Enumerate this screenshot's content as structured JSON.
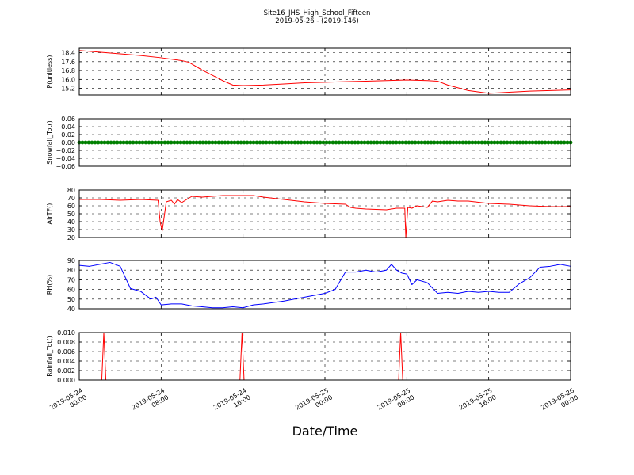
{
  "figure": {
    "title": "Site16_JHS_High_School_Fifteen",
    "subtitle": "2019-05-26 - (2019-146)",
    "xlabel": "Date/Time"
  },
  "chart_data": [
    {
      "type": "line",
      "ylabel": "P(unitless)",
      "ylim": [
        14.6,
        18.8
      ],
      "yticks": [
        "18.4",
        "17.6",
        "16.8",
        "16.0",
        "15.2"
      ],
      "ytick_values": [
        18.4,
        17.6,
        16.8,
        16.0,
        15.2
      ],
      "xlim": [
        0,
        48
      ],
      "grid": true,
      "series": [
        {
          "color": "#ff0000",
          "x": [
            0,
            2,
            4,
            6,
            8,
            10,
            10.7,
            12,
            14,
            15,
            16,
            18,
            20,
            22,
            24,
            26,
            28,
            30,
            32,
            34,
            35,
            36,
            38,
            40,
            42,
            44,
            46,
            48
          ],
          "y": [
            18.6,
            18.45,
            18.3,
            18.15,
            17.95,
            17.7,
            17.55,
            16.85,
            15.9,
            15.5,
            15.45,
            15.5,
            15.6,
            15.7,
            15.75,
            15.8,
            15.85,
            15.9,
            15.95,
            15.9,
            15.85,
            15.5,
            15.0,
            14.75,
            14.85,
            14.95,
            15.0,
            15.05
          ]
        }
      ]
    },
    {
      "type": "scatter",
      "ylabel": "Snowfall_Tot()",
      "ylim": [
        -0.06,
        0.06
      ],
      "yticks": [
        "0.06",
        "0.04",
        "0.02",
        "0.00",
        "−0.02",
        "−0.04",
        "−0.06"
      ],
      "ytick_values": [
        0.06,
        0.04,
        0.02,
        0.0,
        -0.02,
        -0.04,
        -0.06
      ],
      "xlim": [
        0,
        48
      ],
      "grid": true,
      "series": [
        {
          "color": "#008000",
          "x": [
            0,
            48
          ],
          "y": [
            0,
            0
          ],
          "marker": "dense-dots"
        }
      ]
    },
    {
      "type": "line",
      "ylabel": "AirTF()",
      "ylim": [
        20,
        80
      ],
      "yticks": [
        "80",
        "70",
        "60",
        "50",
        "40",
        "30",
        "20"
      ],
      "ytick_values": [
        80,
        70,
        60,
        50,
        40,
        30,
        20
      ],
      "xlim": [
        0,
        48
      ],
      "grid": true,
      "series": [
        {
          "color": "#ff0000",
          "x": [
            0,
            2,
            4,
            6,
            7.7,
            7.9,
            8.1,
            8.5,
            9,
            9.3,
            9.6,
            10,
            10.5,
            11,
            12,
            14,
            16,
            17,
            18,
            20,
            22,
            24,
            26,
            26.5,
            27,
            28,
            30,
            31,
            31.8,
            31.9,
            32.1,
            32.5,
            33,
            34,
            34.5,
            35,
            36,
            37,
            38,
            40,
            42,
            44,
            46,
            48
          ],
          "y": [
            68,
            68,
            67,
            68,
            67,
            40,
            28,
            65,
            67,
            62,
            68,
            64,
            68,
            72,
            71,
            73,
            73,
            73,
            71,
            68,
            65,
            63,
            62,
            58,
            57,
            56,
            55,
            57,
            57,
            20,
            58,
            57,
            60,
            58,
            66,
            65,
            67,
            66,
            66,
            63,
            62,
            60,
            59,
            59
          ]
        }
      ]
    },
    {
      "type": "line",
      "ylabel": "RH(%)",
      "ylim": [
        40,
        90
      ],
      "yticks": [
        "90",
        "80",
        "70",
        "60",
        "50",
        "40"
      ],
      "ytick_values": [
        90,
        80,
        70,
        60,
        50,
        40
      ],
      "xlim": [
        0,
        48
      ],
      "grid": true,
      "series": [
        {
          "color": "#0000ff",
          "x": [
            0,
            1,
            2,
            3,
            4,
            5,
            6,
            7,
            7.5,
            8,
            9,
            10,
            11,
            12,
            13,
            14,
            15,
            16,
            17,
            18,
            20,
            22,
            24,
            25,
            26,
            27,
            28,
            29,
            30,
            30.5,
            31,
            31.5,
            32,
            32.5,
            33,
            34,
            35,
            36,
            37,
            38,
            39,
            40,
            41,
            42,
            43,
            44,
            45,
            46,
            47,
            48
          ],
          "y": [
            85,
            84,
            86,
            88,
            84,
            61,
            58,
            50,
            52,
            44,
            45,
            45,
            43,
            42,
            41,
            41,
            42,
            41,
            44,
            45,
            48,
            52,
            56,
            60,
            78,
            78,
            80,
            78,
            80,
            86,
            80,
            77,
            76,
            65,
            70,
            67,
            56,
            57,
            56,
            58,
            57,
            58,
            57,
            57,
            66,
            72,
            83,
            84,
            86,
            84
          ]
        }
      ]
    },
    {
      "type": "line",
      "ylabel": "Rainfall_Tot()",
      "ylim": [
        0.0,
        0.01
      ],
      "yticks": [
        "0.010",
        "0.008",
        "0.006",
        "0.004",
        "0.002",
        "0.000"
      ],
      "ytick_values": [
        0.01,
        0.008,
        0.006,
        0.004,
        0.002,
        0.0
      ],
      "xlim": [
        0,
        48
      ],
      "grid": true,
      "xticks": [
        {
          "l1": "2019-05-24",
          "l2": "00:00",
          "x": 0
        },
        {
          "l1": "2019-05-24",
          "l2": "08:00",
          "x": 8
        },
        {
          "l1": "2019-05-24",
          "l2": "16:00",
          "x": 16
        },
        {
          "l1": "2019-05-25",
          "l2": "00:00",
          "x": 24
        },
        {
          "l1": "2019-05-25",
          "l2": "08:00",
          "x": 32
        },
        {
          "l1": "2019-05-25",
          "l2": "16:00",
          "x": 40
        },
        {
          "l1": "2019-05-26",
          "l2": "00:00",
          "x": 48
        }
      ],
      "series": [
        {
          "color": "#ff0000",
          "x": [
            0,
            2.2,
            2.4,
            2.6,
            15.7,
            15.9,
            16.1,
            31.2,
            31.4,
            31.6,
            48
          ],
          "y": [
            0,
            0,
            0.01,
            0,
            0,
            0.01,
            0,
            0,
            0.01,
            0,
            0
          ]
        }
      ]
    }
  ]
}
